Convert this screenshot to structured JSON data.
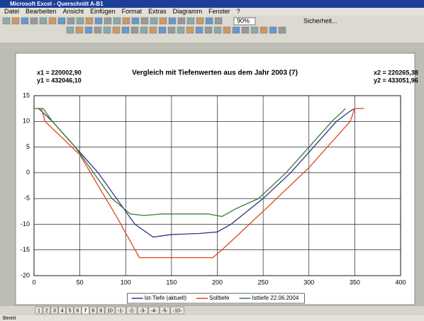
{
  "window": {
    "title": "Microsoft Excel - Querschnitt A-B1",
    "menu": [
      "Datei",
      "Bearbeiten",
      "Ansicht",
      "Einfügen",
      "Format",
      "Extras",
      "Diagramm",
      "Fenster",
      "?"
    ],
    "zoom": "90%",
    "security": "Sicherheit...",
    "sheet_tabs": [
      "1",
      "2",
      "3",
      "4",
      "5",
      "6",
      "7",
      "8",
      "9",
      "10",
      "-1-",
      "-2-",
      "-3-",
      "-4-",
      "-5-",
      "-10-"
    ],
    "status": "Bereit"
  },
  "chart_data": {
    "type": "line",
    "title": "Vergleich mit Tiefenwerten aus dem Jahr 2003 (7)",
    "annotations": [
      "x1 = 220002,90",
      "y1 = 432046,10",
      "x2 = 220265,38",
      "y2 = 433051,96"
    ],
    "xlim": [
      0,
      400
    ],
    "xticks": [
      0,
      50,
      100,
      150,
      200,
      250,
      300,
      350,
      400
    ],
    "ylim": [
      -20,
      15
    ],
    "yticks": [
      -20,
      -15,
      -10,
      -5,
      0,
      5,
      10,
      15
    ],
    "grid": true,
    "legend": "bottom",
    "series": [
      {
        "name": "Ist-Tiefe (aktuell)",
        "color": "#34348a",
        "x": [
          5,
          20,
          45,
          70,
          90,
          110,
          130,
          150,
          180,
          200,
          215,
          250,
          280,
          305,
          330,
          345,
          350
        ],
        "values": [
          12.5,
          10,
          5,
          0,
          -5,
          -10,
          -12.5,
          -12,
          -11.8,
          -11.5,
          -10,
          -5,
          0,
          5,
          10,
          12,
          12.5
        ]
      },
      {
        "name": "Solltiefe",
        "color": "#e0441e",
        "x": [
          0,
          8,
          12,
          50,
          90,
          115,
          150,
          195,
          205,
          250,
          300,
          345,
          350,
          360
        ],
        "values": [
          12.5,
          12.5,
          10,
          3.5,
          -8.5,
          -16.5,
          -16.5,
          -16.5,
          -15,
          -7.5,
          1,
          10,
          12.5,
          12.5
        ]
      },
      {
        "name": "Isttiefe 22.06.2004",
        "color": "#3a7a3a",
        "x": [
          0,
          10,
          20,
          45,
          65,
          85,
          105,
          120,
          140,
          190,
          205,
          220,
          245,
          275,
          300,
          325,
          340
        ],
        "values": [
          12.5,
          12.5,
          10,
          5,
          0,
          -5,
          -8,
          -8.3,
          -8,
          -8,
          -8.5,
          -7,
          -5,
          0,
          5,
          10,
          12.5
        ]
      }
    ]
  }
}
